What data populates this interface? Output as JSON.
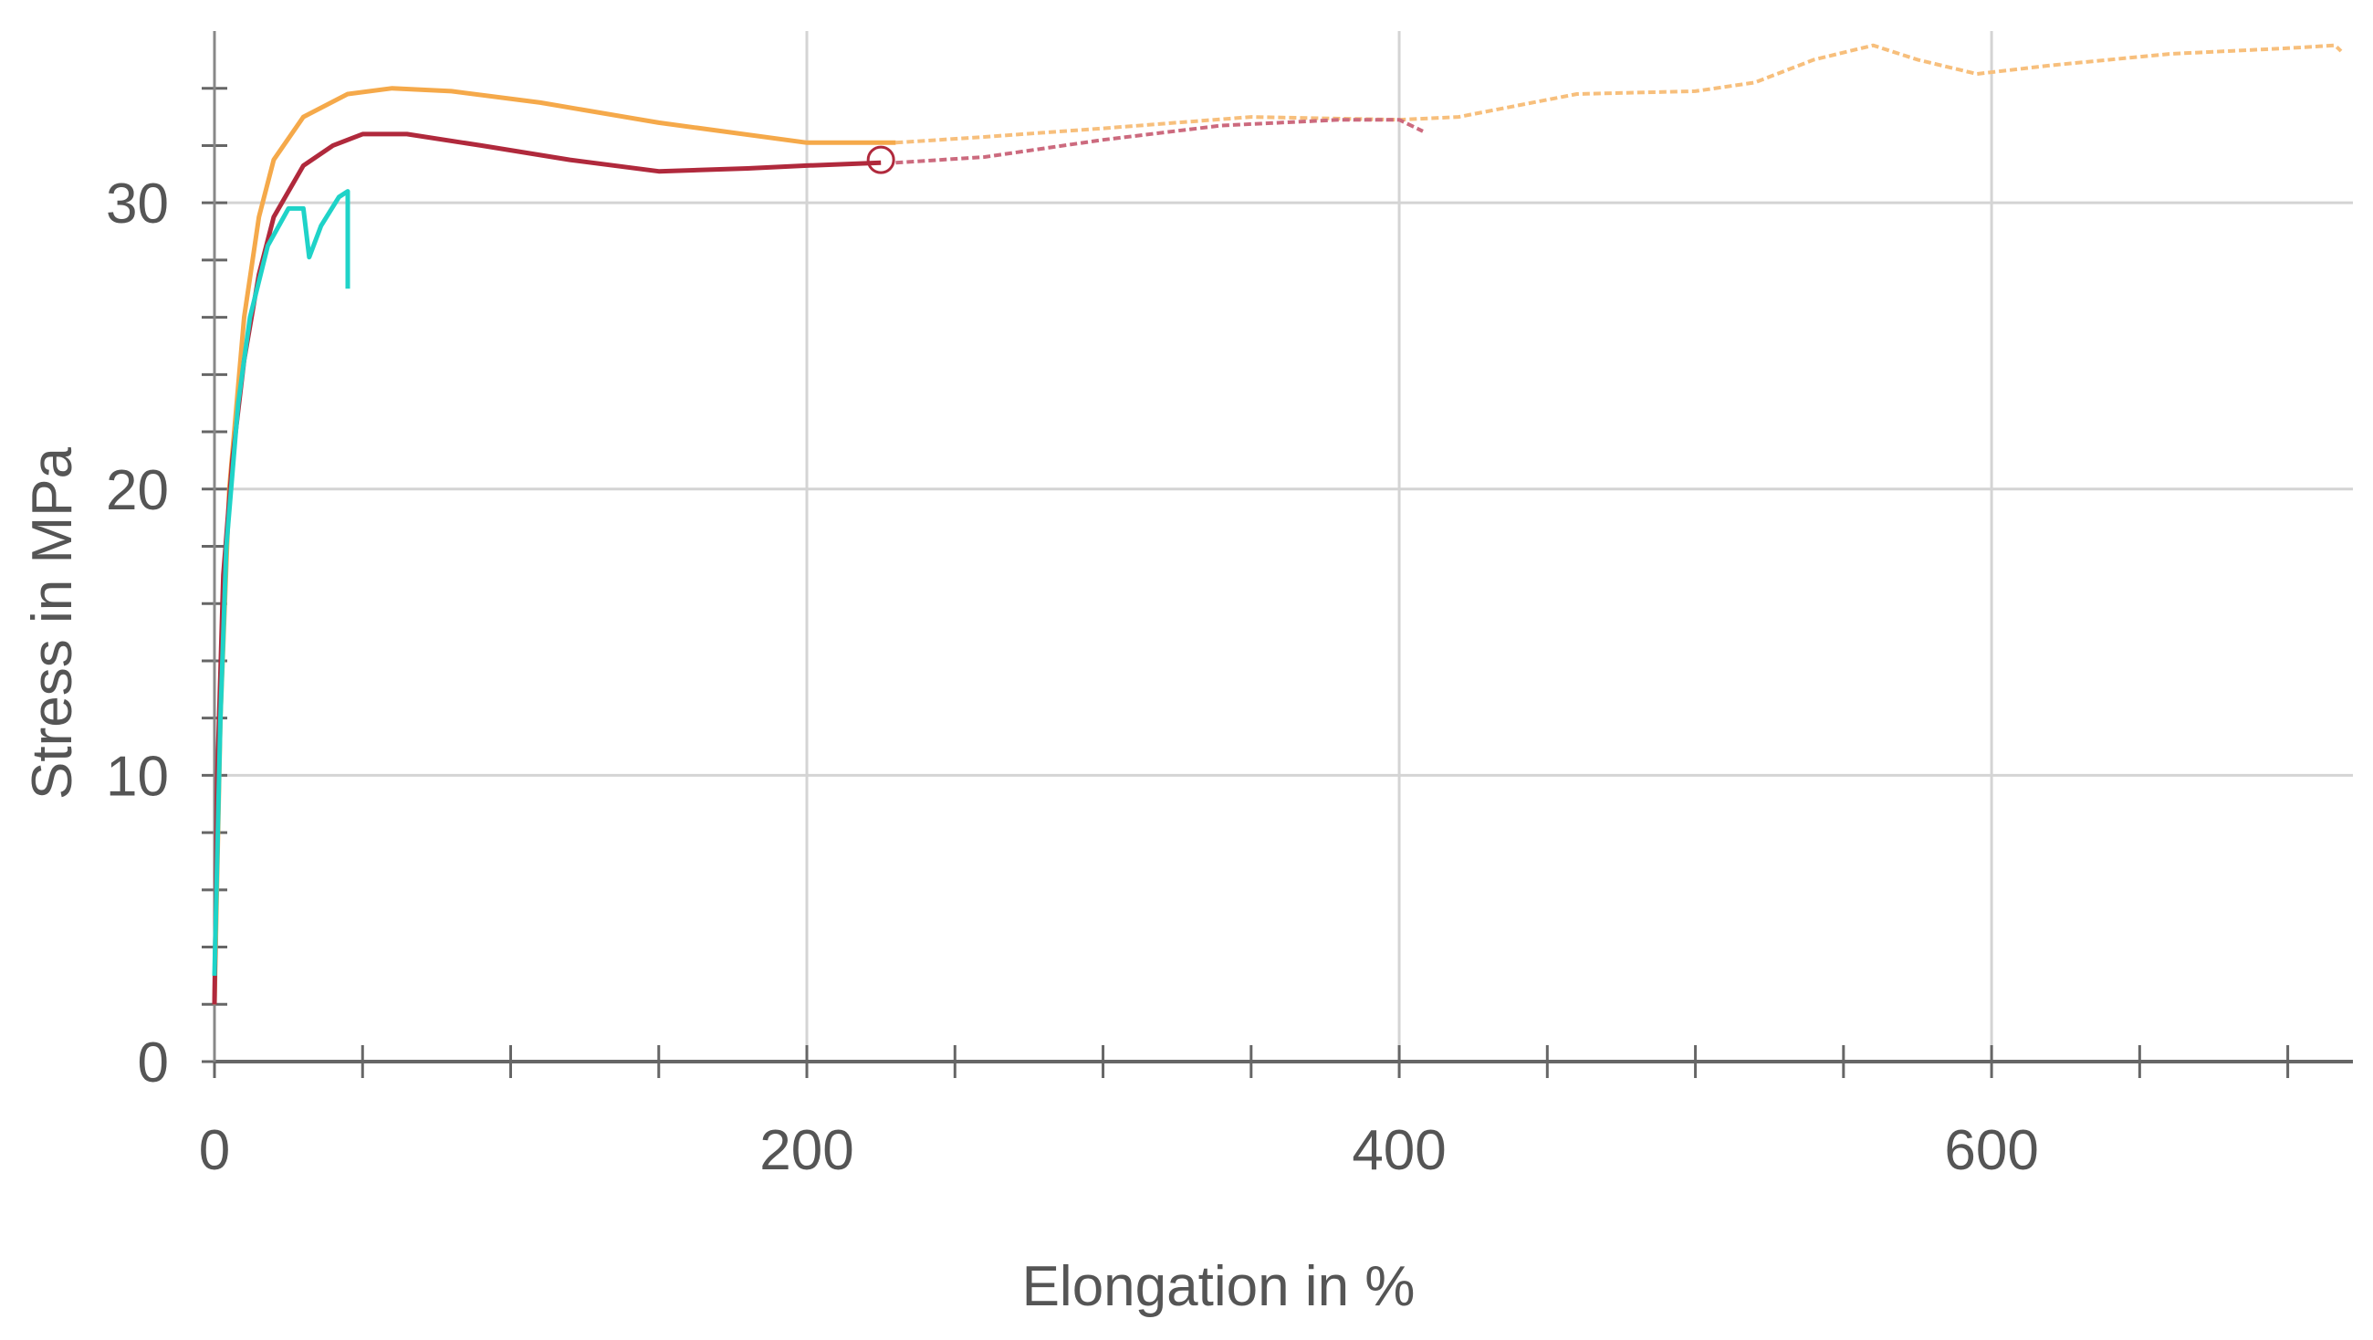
{
  "chart_data": {
    "type": "line",
    "xlabel": "Elongation in %",
    "ylabel": "Stress in MPa",
    "xlim": [
      0,
      722
    ],
    "ylim": [
      0,
      36
    ],
    "xticks": [
      0,
      200,
      400,
      600
    ],
    "yticks": [
      0,
      10,
      20,
      30
    ],
    "xticks_minor": [
      50,
      100,
      150,
      250,
      300,
      350,
      450,
      500,
      550,
      650,
      700
    ],
    "yticks_minor": [
      2,
      4,
      6,
      8,
      12,
      14,
      16,
      18,
      22,
      24,
      26,
      28,
      32,
      34
    ],
    "grid": true,
    "series": [
      {
        "color": "#f5a94a",
        "style": "solid",
        "x": [
          0,
          2,
          5,
          10,
          15,
          20,
          30,
          45,
          60,
          80,
          110,
          150,
          200,
          230
        ],
        "values": [
          2,
          12,
          20,
          26,
          29.5,
          31.5,
          33,
          33.8,
          34,
          33.9,
          33.5,
          32.8,
          32.1,
          32.1
        ]
      },
      {
        "color": "#f7bf7c",
        "style": "dashed",
        "x": [
          230,
          260,
          300,
          350,
          400,
          420,
          460,
          500,
          520,
          540,
          560,
          575,
          595,
          620,
          660,
          700,
          716,
          718
        ],
        "values": [
          32.1,
          32.3,
          32.6,
          33,
          32.9,
          33,
          33.8,
          33.9,
          34.2,
          35,
          35.5,
          35,
          34.5,
          34.8,
          35.2,
          35.4,
          35.5,
          35.3
        ]
      },
      {
        "color": "#b0293c",
        "style": "solid",
        "x": [
          0,
          1,
          3,
          6,
          10,
          15,
          20,
          30,
          40,
          50,
          65,
          90,
          120,
          150,
          180,
          200,
          225
        ],
        "values": [
          2,
          10,
          17,
          21,
          24.5,
          27.5,
          29.5,
          31.3,
          32,
          32.4,
          32.4,
          32,
          31.5,
          31.1,
          31.2,
          31.3,
          31.4
        ]
      },
      {
        "color": "#cc6a7e",
        "style": "dashed",
        "x": [
          230,
          260,
          300,
          340,
          380,
          400,
          408
        ],
        "values": [
          31.4,
          31.6,
          32.2,
          32.7,
          32.9,
          32.9,
          32.5
        ]
      },
      {
        "color": "#b0293c",
        "style": "circle",
        "x": [
          225
        ],
        "values": [
          31.5
        ]
      },
      {
        "color": "#1fd3c8",
        "style": "solid",
        "x": [
          0,
          2,
          4,
          8,
          12,
          18,
          25,
          30,
          32,
          36,
          42,
          45,
          45
        ],
        "values": [
          3,
          12,
          18,
          23,
          26,
          28.5,
          29.8,
          29.8,
          28.1,
          29.2,
          30.2,
          30.4,
          27
        ]
      }
    ]
  }
}
